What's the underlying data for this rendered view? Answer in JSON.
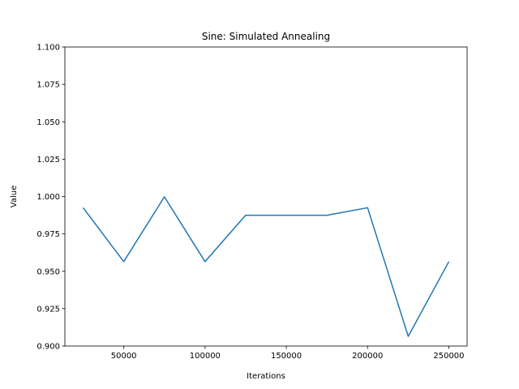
{
  "chart_data": {
    "type": "line",
    "title": "Sine: Simulated Annealing",
    "xlabel": "Iterations",
    "ylabel": "Value",
    "xlim": [
      13750,
      261250
    ],
    "ylim": [
      0.9,
      1.1
    ],
    "x_ticks": [
      50000,
      100000,
      150000,
      200000,
      250000
    ],
    "x_tick_labels": [
      "50000",
      "100000",
      "150000",
      "200000",
      "250000"
    ],
    "y_ticks": [
      0.9,
      0.925,
      0.95,
      0.975,
      1.0,
      1.025,
      1.05,
      1.075,
      1.1
    ],
    "y_tick_labels": [
      "0.900",
      "0.925",
      "0.950",
      "0.975",
      "1.000",
      "1.025",
      "1.050",
      "1.075",
      "1.100"
    ],
    "grid": false,
    "series": [
      {
        "color": "#1f77b4",
        "x": [
          25000,
          50000,
          75000,
          100000,
          125000,
          150000,
          175000,
          200000,
          225000,
          250000
        ],
        "values": [
          0.9925,
          0.9565,
          0.9998,
          0.9565,
          0.9875,
          0.9875,
          0.9875,
          0.9925,
          0.9065,
          0.9565
        ]
      }
    ]
  }
}
